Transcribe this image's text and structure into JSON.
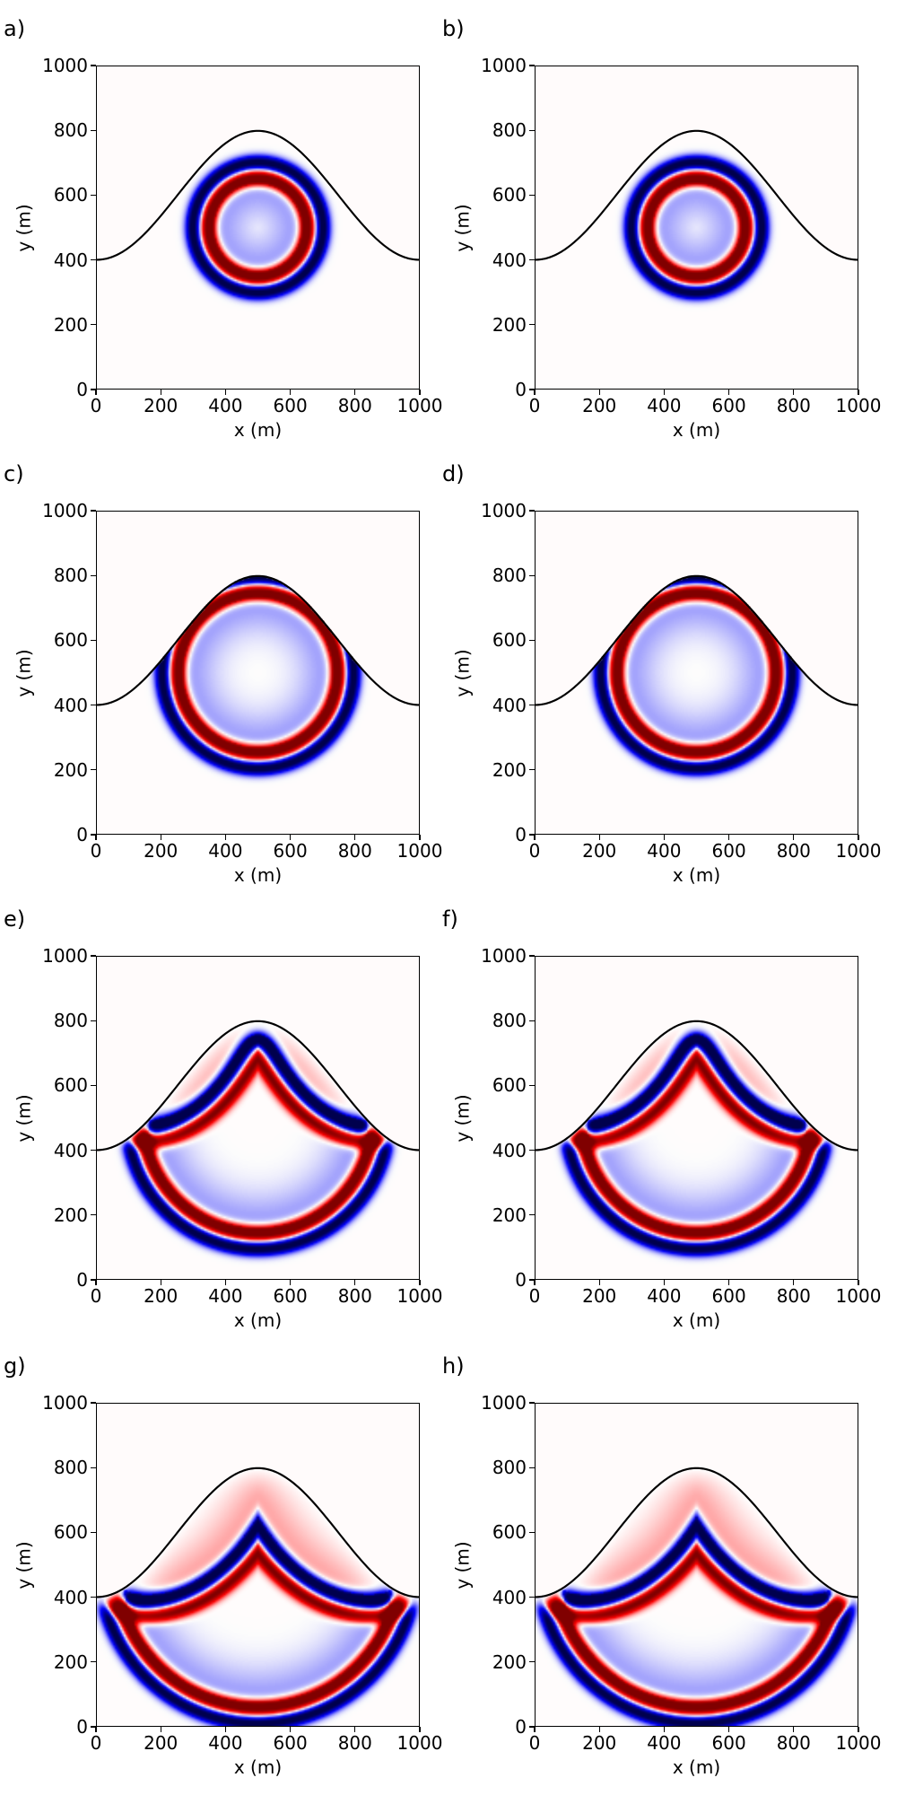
{
  "chart_data": [
    {
      "type": "heatmap",
      "panel_label": "a)",
      "xlabel": "x (m)",
      "ylabel": "y (m)",
      "xlim": [
        0,
        1000
      ],
      "ylim": [
        0,
        1000
      ],
      "xticks": [
        0,
        200,
        400,
        600,
        800,
        1000
      ],
      "yticks": [
        0,
        200,
        400,
        600,
        800,
        1000
      ],
      "wavefront_radius_m": 160,
      "reflected": false,
      "colormap": "seismic"
    },
    {
      "type": "heatmap",
      "panel_label": "b)",
      "xlabel": "x (m)",
      "ylabel": "y (m)",
      "xlim": [
        0,
        1000
      ],
      "ylim": [
        0,
        1000
      ],
      "xticks": [
        0,
        200,
        400,
        600,
        800,
        1000
      ],
      "yticks": [
        0,
        200,
        400,
        600,
        800,
        1000
      ],
      "wavefront_radius_m": 160,
      "reflected": false,
      "colormap": "seismic"
    },
    {
      "type": "heatmap",
      "panel_label": "c)",
      "xlabel": "x (m)",
      "ylabel": "y (m)",
      "xlim": [
        0,
        1000
      ],
      "ylim": [
        0,
        1000
      ],
      "xticks": [
        0,
        200,
        400,
        600,
        800,
        1000
      ],
      "yticks": [
        0,
        200,
        400,
        600,
        800,
        1000
      ],
      "wavefront_radius_m": 255,
      "reflected": false,
      "colormap": "seismic"
    },
    {
      "type": "heatmap",
      "panel_label": "d)",
      "xlabel": "x (m)",
      "ylabel": "y (m)",
      "xlim": [
        0,
        1000
      ],
      "ylim": [
        0,
        1000
      ],
      "xticks": [
        0,
        200,
        400,
        600,
        800,
        1000
      ],
      "yticks": [
        0,
        200,
        400,
        600,
        800,
        1000
      ],
      "wavefront_radius_m": 255,
      "reflected": false,
      "colormap": "seismic"
    },
    {
      "type": "heatmap",
      "panel_label": "e)",
      "xlabel": "x (m)",
      "ylabel": "y (m)",
      "xlim": [
        0,
        1000
      ],
      "ylim": [
        0,
        1000
      ],
      "xticks": [
        0,
        200,
        400,
        600,
        800,
        1000
      ],
      "yticks": [
        0,
        200,
        400,
        600,
        800,
        1000
      ],
      "wavefront_radius_m": 365,
      "reflected": true,
      "colormap": "seismic"
    },
    {
      "type": "heatmap",
      "panel_label": "f)",
      "xlabel": "x (m)",
      "ylabel": "y (m)",
      "xlim": [
        0,
        1000
      ],
      "ylim": [
        0,
        1000
      ],
      "xticks": [
        0,
        200,
        400,
        600,
        800,
        1000
      ],
      "yticks": [
        0,
        200,
        400,
        600,
        800,
        1000
      ],
      "wavefront_radius_m": 365,
      "reflected": true,
      "colormap": "seismic"
    },
    {
      "type": "heatmap",
      "panel_label": "g)",
      "xlabel": "x (m)",
      "ylabel": "y (m)",
      "xlim": [
        0,
        1000
      ],
      "ylim": [
        0,
        1000
      ],
      "xticks": [
        0,
        200,
        400,
        600,
        800,
        1000
      ],
      "yticks": [
        0,
        200,
        400,
        600,
        800,
        1000
      ],
      "wavefront_radius_m": 450,
      "reflected": true,
      "colormap": "seismic"
    },
    {
      "type": "heatmap",
      "panel_label": "h)",
      "xlabel": "x (m)",
      "ylabel": "y (m)",
      "xlim": [
        0,
        1000
      ],
      "ylim": [
        0,
        1000
      ],
      "xticks": [
        0,
        200,
        400,
        600,
        800,
        1000
      ],
      "yticks": [
        0,
        200,
        400,
        600,
        800,
        1000
      ],
      "wavefront_radius_m": 450,
      "reflected": true,
      "colormap": "seismic"
    }
  ],
  "source": {
    "x": 500,
    "y": 500
  },
  "topography": {
    "x": [
      0,
      125,
      250,
      375,
      500,
      625,
      750,
      875,
      1000
    ],
    "y": [
      400,
      459,
      600,
      741,
      800,
      741,
      600,
      459,
      400
    ],
    "color": "#000000"
  }
}
